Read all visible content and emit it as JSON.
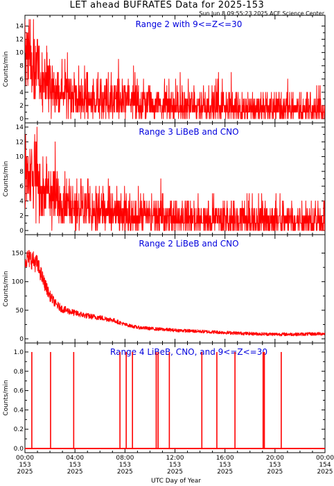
{
  "title": "LET ahead BUFRATES Data for 2025-153",
  "timestamp": "Sun Jun  8 09:55:23 2025 ACE Science Center",
  "xlabel": "UTC Day of Year",
  "colors": {
    "trace": "#ff0000",
    "panel_label": "#0000dd",
    "axes": "#000000"
  },
  "x_ticks": [
    {
      "time": "00:00",
      "doy": "153",
      "year": "2025"
    },
    {
      "time": "04:00",
      "doy": "153",
      "year": "2025"
    },
    {
      "time": "08:00",
      "doy": "153",
      "year": "2025"
    },
    {
      "time": "12:00",
      "doy": "153",
      "year": "2025"
    },
    {
      "time": "16:00",
      "doy": "153",
      "year": "2025"
    },
    {
      "time": "20:00",
      "doy": "153",
      "year": "2025"
    },
    {
      "time": "00:00",
      "doy": "154",
      "year": "2025"
    }
  ],
  "chart_data": [
    {
      "type": "line",
      "title": "Range 2 with 9<=Z<=30",
      "ylabel": "Counts/min",
      "xlim": [
        0,
        24
      ],
      "ylim": [
        0,
        15
      ],
      "yticks": [
        0,
        2,
        4,
        6,
        8,
        10,
        12,
        14
      ],
      "x_hours": [
        0,
        0.5,
        1,
        1.5,
        2,
        3,
        4,
        5,
        6,
        8,
        10,
        12,
        14,
        16,
        18,
        20,
        22,
        24
      ],
      "values": [
        10,
        9,
        7,
        6,
        5,
        4,
        3.5,
        3,
        3,
        2.5,
        2.5,
        2,
        2,
        2,
        1.5,
        1.5,
        1.5,
        1.5
      ]
    },
    {
      "type": "line",
      "title": "Range 3 LiBeB and CNO",
      "ylabel": "Counts/min",
      "xlim": [
        0,
        24
      ],
      "ylim": [
        0,
        14
      ],
      "yticks": [
        0,
        2,
        4,
        6,
        8,
        10,
        12,
        14
      ],
      "x_hours": [
        0,
        0.5,
        1,
        1.5,
        2,
        3,
        4,
        5,
        6,
        8,
        10,
        12,
        14,
        16,
        18,
        20,
        22,
        24
      ],
      "values": [
        8,
        8,
        7,
        6,
        5,
        4,
        3.5,
        3,
        2.5,
        2,
        2,
        2,
        1.5,
        1.5,
        1.5,
        1.5,
        1.5,
        1.5
      ]
    },
    {
      "type": "line",
      "title": "Range 2 LiBeB and CNO",
      "ylabel": "Counts/min",
      "xlim": [
        0,
        24
      ],
      "ylim": [
        0,
        175
      ],
      "yticks": [
        0,
        50,
        100,
        150
      ],
      "x_hours": [
        0,
        0.5,
        1,
        1.5,
        2,
        2.5,
        3,
        4,
        5,
        6,
        7,
        8,
        9,
        10,
        12,
        14,
        16,
        18,
        20,
        22,
        24
      ],
      "values": [
        140,
        140,
        130,
        100,
        75,
        60,
        52,
        45,
        40,
        37,
        33,
        25,
        20,
        18,
        15,
        13,
        11,
        9,
        8,
        8,
        9
      ]
    },
    {
      "type": "line",
      "title": "Range 4 LiBeB, CNO, and 9<=Z<=30",
      "ylabel": "Counts/min",
      "xlim": [
        0,
        24
      ],
      "ylim": [
        0,
        1.05
      ],
      "yticks": [
        0.0,
        0.2,
        0.4,
        0.6,
        0.8,
        1.0
      ],
      "yticks_labels": [
        "0.0",
        "0.2",
        "0.4",
        "0.6",
        "0.8",
        "1.0"
      ],
      "spikes_hours": [
        0.55,
        2.05,
        3.9,
        7.6,
        8.1,
        8.6,
        10.5,
        10.65,
        11.55,
        14.15,
        15.35,
        16.8,
        19.05,
        19.15,
        20.5
      ],
      "baseline": 0
    }
  ]
}
